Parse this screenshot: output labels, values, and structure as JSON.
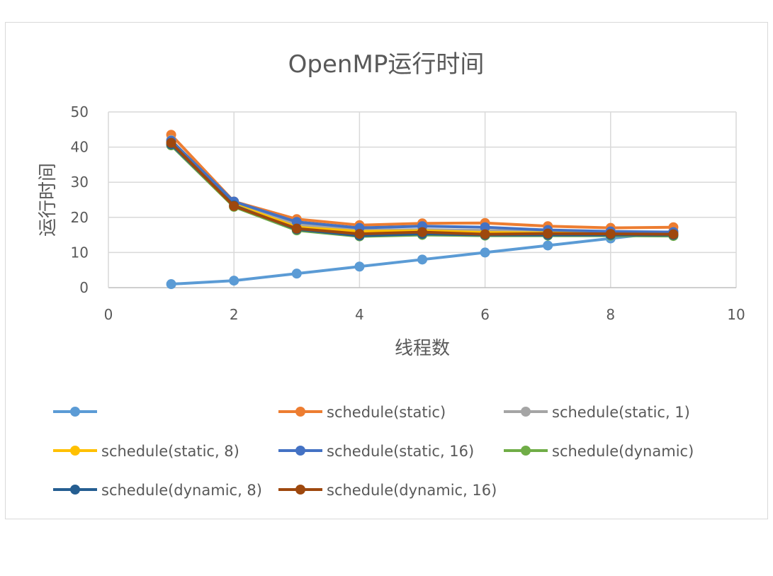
{
  "chart_data": {
    "type": "scatter",
    "title": "OpenMP运行时间",
    "xlabel": "线程数",
    "ylabel": "运行时间",
    "xlim": [
      0,
      10
    ],
    "ylim": [
      0,
      50
    ],
    "xticks": [
      0,
      2,
      4,
      6,
      8,
      10
    ],
    "yticks": [
      0,
      10,
      20,
      30,
      40,
      50
    ],
    "grid": true,
    "legend_position": "bottom",
    "x": [
      1,
      2,
      3,
      4,
      5,
      6,
      7,
      8,
      9
    ],
    "series": [
      {
        "name": "",
        "color": "#5b9bd5",
        "values": [
          1,
          2,
          4,
          6,
          8,
          10,
          12,
          14,
          16
        ]
      },
      {
        "name": "schedule(static)",
        "color": "#ed7d31",
        "values": [
          43.5,
          24.5,
          19.5,
          17.8,
          18.3,
          18.4,
          17.5,
          17,
          17.2
        ]
      },
      {
        "name": "schedule(static, 1)",
        "color": "#a5a5a5",
        "values": [
          42,
          24,
          18,
          16.3,
          16.5,
          16.3,
          16,
          15.8,
          15.8
        ]
      },
      {
        "name": "schedule(static, 8)",
        "color": "#ffc000",
        "values": [
          41.5,
          23.8,
          17.2,
          16,
          16.2,
          15.7,
          15.6,
          15.4,
          15.3
        ]
      },
      {
        "name": "schedule(static, 16)",
        "color": "#4472c4",
        "values": [
          41.8,
          24.5,
          18.7,
          17,
          17.5,
          17.2,
          16.4,
          16,
          15.8
        ]
      },
      {
        "name": "schedule(dynamic)",
        "color": "#70ad47",
        "values": [
          40.5,
          23,
          16.3,
          14.6,
          15,
          14.8,
          14.8,
          14.8,
          14.7
        ]
      },
      {
        "name": "schedule(dynamic, 8)",
        "color": "#255e91",
        "values": [
          40.8,
          23.4,
          16.6,
          14.8,
          15.3,
          15,
          15,
          15,
          15
        ]
      },
      {
        "name": "schedule(dynamic, 16)",
        "color": "#9e480e",
        "values": [
          41.2,
          23.2,
          16.8,
          15.3,
          15.8,
          15.2,
          15.4,
          15.3,
          15.2
        ]
      }
    ]
  }
}
